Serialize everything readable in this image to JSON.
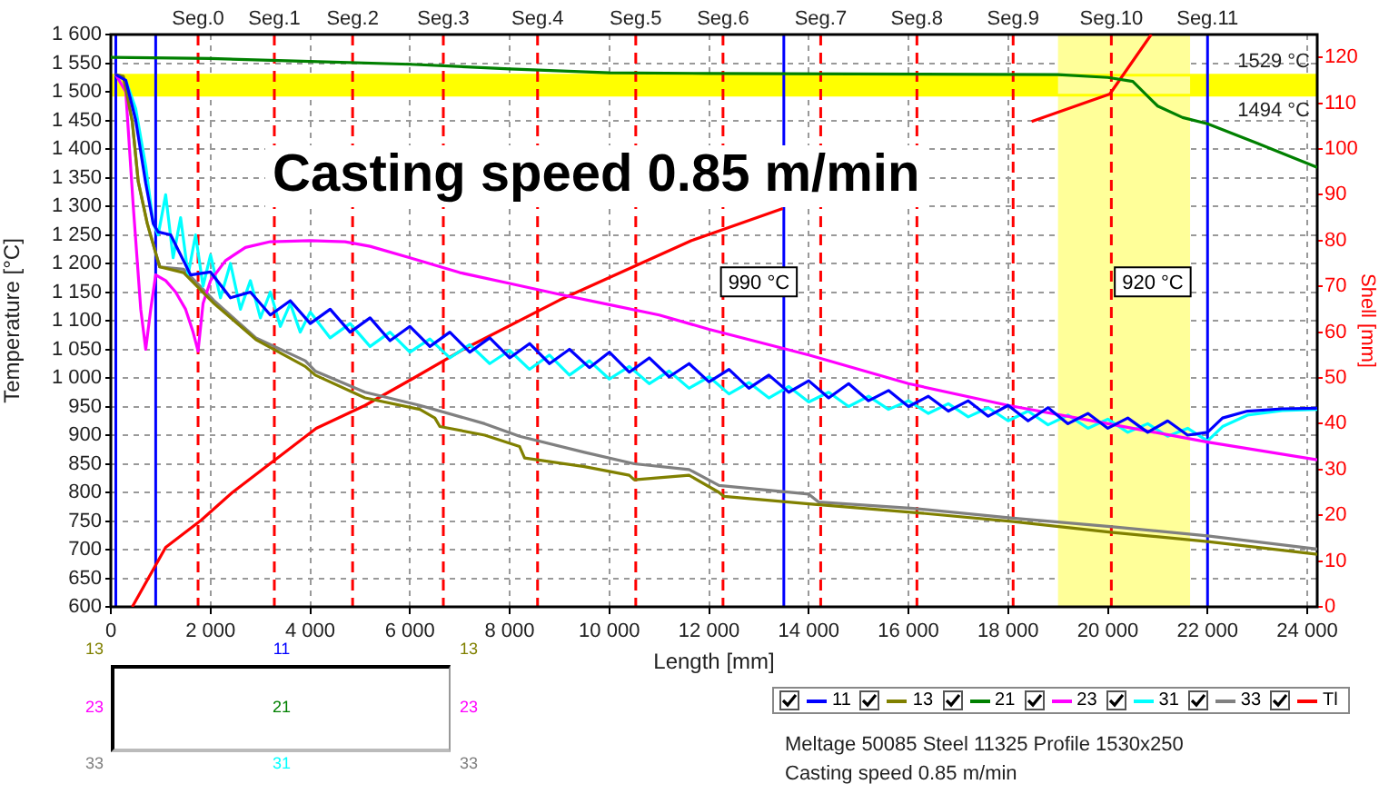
{
  "chart_data": {
    "type": "line",
    "title": "Casting speed 0.85 m/min",
    "xlabel": "Length [mm]",
    "ylabel": "Temperature [°C]",
    "y2label": "Shell [mm]",
    "xlim": [
      0,
      24200
    ],
    "xticks": [
      0,
      {
        "value": 2000,
        "label": "2 000"
      },
      {
        "value": 4000,
        "label": "4 000"
      },
      {
        "value": 6000,
        "label": "6 000"
      },
      {
        "value": 8000,
        "label": "8 000"
      },
      {
        "value": 10000,
        "label": "10 000"
      },
      {
        "value": 12000,
        "label": "12 000"
      },
      {
        "value": 14000,
        "label": "14 000"
      },
      {
        "value": 16000,
        "label": "16 000"
      },
      {
        "value": 18000,
        "label": "18 000"
      },
      {
        "value": 20000,
        "label": "20 000"
      },
      {
        "value": 22000,
        "label": "22 000"
      },
      {
        "value": 24000,
        "label": "24 000"
      }
    ],
    "ylim": [
      600,
      1600
    ],
    "yticks": [
      600,
      650,
      700,
      750,
      800,
      850,
      900,
      950,
      {
        "value": 1000,
        "label": "1 000"
      },
      {
        "value": 1050,
        "label": "1 050"
      },
      {
        "value": 1100,
        "label": "1 100"
      },
      {
        "value": 1150,
        "label": "1 150"
      },
      {
        "value": 1200,
        "label": "1 200"
      },
      {
        "value": 1250,
        "label": "1 250"
      },
      {
        "value": 1300,
        "label": "1 300"
      },
      {
        "value": 1350,
        "label": "1 350"
      },
      {
        "value": 1400,
        "label": "1 400"
      },
      {
        "value": 1450,
        "label": "1 450"
      },
      {
        "value": 1500,
        "label": "1 500"
      },
      {
        "value": 1550,
        "label": "1 550"
      },
      {
        "value": 1600,
        "label": "1 600"
      }
    ],
    "y2lim": [
      0,
      125
    ],
    "y2ticks": [
      0,
      10,
      20,
      30,
      40,
      50,
      60,
      70,
      80,
      90,
      100,
      110,
      120
    ],
    "grid": true,
    "legend": "bottom right",
    "marker": "none",
    "series": [
      {
        "name": "11",
        "color": "#0000ff",
        "x": [
          100,
          300,
          500,
          700,
          850,
          950,
          1200,
          1600,
          2000,
          2400,
          2800,
          3200,
          3600,
          4000,
          4400,
          4800,
          5200,
          5600,
          6000,
          6400,
          6800,
          7200,
          7600,
          8000,
          8400,
          8800,
          9200,
          9600,
          10000,
          10400,
          10800,
          11200,
          11600,
          12000,
          12400,
          12800,
          13200,
          13600,
          14000,
          14400,
          14800,
          15200,
          15600,
          16000,
          16400,
          16800,
          17200,
          17600,
          18000,
          18400,
          18800,
          19200,
          19600,
          20000,
          20400,
          20800,
          21200,
          21600,
          22000,
          22300,
          22800,
          23500,
          24200
        ],
        "values": [
          1530,
          1520,
          1450,
          1340,
          1270,
          1255,
          1250,
          1180,
          1185,
          1140,
          1150,
          1110,
          1135,
          1095,
          1120,
          1080,
          1105,
          1065,
          1090,
          1055,
          1080,
          1045,
          1070,
          1035,
          1060,
          1025,
          1050,
          1018,
          1045,
          1010,
          1035,
          1002,
          1025,
          993,
          1015,
          982,
          1005,
          975,
          995,
          965,
          990,
          960,
          978,
          950,
          968,
          942,
          960,
          933,
          952,
          925,
          948,
          920,
          938,
          912,
          930,
          905,
          925,
          900,
          905,
          930,
          942,
          946,
          947
        ]
      },
      {
        "name": "13",
        "color": "#808000",
        "x": [
          100,
          250,
          430,
          550,
          730,
          980,
          1460,
          2070,
          2910,
          3900,
          4100,
          5100,
          6200,
          6500,
          6600,
          7500,
          8200,
          8300,
          9500,
          10400,
          10500,
          11600,
          12200,
          12300,
          14000,
          16100,
          18100,
          20100,
          22000,
          24200
        ],
        "values": [
          1530,
          1527,
          1448,
          1343,
          1270,
          1194,
          1184,
          1130,
          1067,
          1020,
          1005,
          965,
          945,
          930,
          915,
          900,
          880,
          860,
          845,
          830,
          822,
          830,
          800,
          793,
          780,
          765,
          749,
          730,
          714,
          692
        ]
      },
      {
        "name": "21",
        "color": "#008000",
        "x": [
          0,
          2000,
          4000,
          6000,
          8000,
          10000,
          12000,
          19000,
          20000,
          20500,
          21000,
          21500,
          22000,
          23000,
          24200
        ],
        "values": [
          1560,
          1558,
          1553,
          1548,
          1540,
          1533,
          1532,
          1530,
          1525,
          1518,
          1475,
          1455,
          1444,
          1410,
          1368
        ]
      },
      {
        "name": "23",
        "color": "#ff00ff",
        "x": [
          100,
          300,
          450,
          600,
          700,
          800,
          900,
          1100,
          1300,
          1500,
          1650,
          1750,
          1850,
          2000,
          2300,
          2700,
          3200,
          4000,
          4700,
          5200,
          6000,
          7000,
          8000,
          9000,
          10000,
          11000,
          12000,
          14000,
          16000,
          18000,
          20000,
          22000,
          24200
        ],
        "values": [
          1530,
          1500,
          1300,
          1120,
          1050,
          1120,
          1180,
          1170,
          1150,
          1120,
          1080,
          1047,
          1130,
          1170,
          1205,
          1228,
          1238,
          1240,
          1238,
          1230,
          1210,
          1184,
          1165,
          1146,
          1128,
          1110,
          1085,
          1040,
          990,
          952,
          920,
          888,
          857
        ]
      },
      {
        "name": "31",
        "color": "#00ffff",
        "x": [
          100,
          300,
          500,
          700,
          850,
          950,
          1100,
          1250,
          1400,
          1550,
          1700,
          1850,
          2000,
          2200,
          2400,
          2600,
          2800,
          3000,
          3200,
          3400,
          3600,
          3800,
          4000,
          4400,
          4800,
          5200,
          5600,
          6000,
          6400,
          6800,
          7200,
          7600,
          8000,
          8400,
          8800,
          9200,
          9600,
          10000,
          10400,
          10800,
          11200,
          11600,
          12000,
          12400,
          12800,
          13200,
          13600,
          14000,
          14400,
          14800,
          15200,
          15600,
          16000,
          16400,
          16800,
          17200,
          17600,
          18000,
          18400,
          18800,
          19200,
          19600,
          20000,
          20400,
          20800,
          21200,
          21600,
          22000,
          22300,
          22800,
          23500,
          24200
        ],
        "values": [
          1530,
          1520,
          1470,
          1370,
          1270,
          1250,
          1320,
          1210,
          1280,
          1180,
          1250,
          1160,
          1215,
          1140,
          1200,
          1120,
          1170,
          1105,
          1150,
          1090,
          1130,
          1080,
          1115,
          1070,
          1095,
          1055,
          1080,
          1045,
          1068,
          1035,
          1058,
          1025,
          1048,
          1015,
          1040,
          1005,
          1030,
          998,
          1020,
          990,
          1012,
          982,
          1002,
          972,
          992,
          965,
          985,
          958,
          975,
          950,
          968,
          945,
          960,
          938,
          955,
          932,
          948,
          925,
          942,
          918,
          935,
          912,
          928,
          905,
          920,
          898,
          912,
          890,
          915,
          935,
          943,
          945
        ]
      },
      {
        "name": "33",
        "color": "#808080",
        "x": [
          100,
          250,
          430,
          550,
          730,
          980,
          1460,
          2070,
          2910,
          3900,
          4100,
          5100,
          6200,
          7500,
          8200,
          9500,
          10500,
          11600,
          12200,
          14000,
          14200,
          16100,
          18100,
          20100,
          22000,
          24200
        ],
        "values": [
          1530,
          1527,
          1448,
          1343,
          1270,
          1194,
          1190,
          1135,
          1070,
          1030,
          1012,
          975,
          952,
          920,
          898,
          870,
          850,
          840,
          812,
          797,
          783,
          772,
          755,
          740,
          724,
          701
        ]
      },
      {
        "name": "Tl",
        "color": "#ff0000",
        "axis": "y2",
        "x": [
          430,
          1100,
          1820,
          2440,
          3400,
          4120,
          5100,
          6080,
          7030,
          9000,
          11650,
          13480,
          16000,
          18470,
          20040,
          20870
        ],
        "values": [
          0,
          13,
          19,
          25,
          33,
          39,
          44,
          50,
          56,
          67,
          80,
          87,
          null,
          106,
          112,
          125
        ]
      }
    ],
    "bands": [
      {
        "axis": "y",
        "from": 1494,
        "to": 1529,
        "color": "#ffff00"
      },
      {
        "axis": "x",
        "from": 19000,
        "to": 21650,
        "color": "#ffff99"
      }
    ],
    "ref_lines": [
      {
        "axis": "y",
        "value": 1529,
        "label": "1529 °C",
        "color": "#ffff00"
      },
      {
        "axis": "y",
        "value": 1494,
        "label": "1494 °C",
        "color": "#ffff00"
      },
      {
        "axis": "x",
        "value": 100,
        "color": "#0000ff"
      },
      {
        "axis": "x",
        "value": 900,
        "color": "#0000ff"
      },
      {
        "axis": "x",
        "value": 13500,
        "color": "#0000ff"
      },
      {
        "axis": "x",
        "value": 1750,
        "label": "Seg.0",
        "color": "#ff0000",
        "line_style": "dashed"
      },
      {
        "axis": "x",
        "value": 3280,
        "label": "Seg.1",
        "color": "#ff0000",
        "line_style": "dashed"
      },
      {
        "axis": "x",
        "value": 4850,
        "label": "Seg.2",
        "color": "#ff0000",
        "line_style": "dashed"
      },
      {
        "axis": "x",
        "value": 6670,
        "label": "Seg.3",
        "color": "#ff0000",
        "line_style": "dashed"
      },
      {
        "axis": "x",
        "value": 8560,
        "label": "Seg.4",
        "color": "#ff0000",
        "line_style": "dashed"
      },
      {
        "axis": "x",
        "value": 10530,
        "label": "Seg.5",
        "color": "#ff0000",
        "line_style": "dashed"
      },
      {
        "axis": "x",
        "value": 12280,
        "label": "Seg.6",
        "color": "#ff0000",
        "line_style": "dashed"
      },
      {
        "axis": "x",
        "value": 14240,
        "label": "Seg.7",
        "color": "#ff0000",
        "line_style": "dashed"
      },
      {
        "axis": "x",
        "value": 16170,
        "label": "Seg.8",
        "color": "#ff0000",
        "line_style": "dashed"
      },
      {
        "axis": "x",
        "value": 18100,
        "label": "Seg.9",
        "color": "#ff0000",
        "line_style": "dashed"
      },
      {
        "axis": "x",
        "value": 20070,
        "label": "Seg.10",
        "color": "#ff0000",
        "line_style": "dashed"
      },
      {
        "axis": "x",
        "value": 22000,
        "label": "Seg.11",
        "color": "#0000ff"
      }
    ],
    "annotations": [
      {
        "text": "990 °C",
        "x": 13000,
        "y": 1168
      },
      {
        "text": "920 °C",
        "x": 20900,
        "y": 1168
      },
      "Meltage 50085 Steel 11325 Profile 1530x250",
      "Casting speed 0.85 m/min"
    ]
  }
}
